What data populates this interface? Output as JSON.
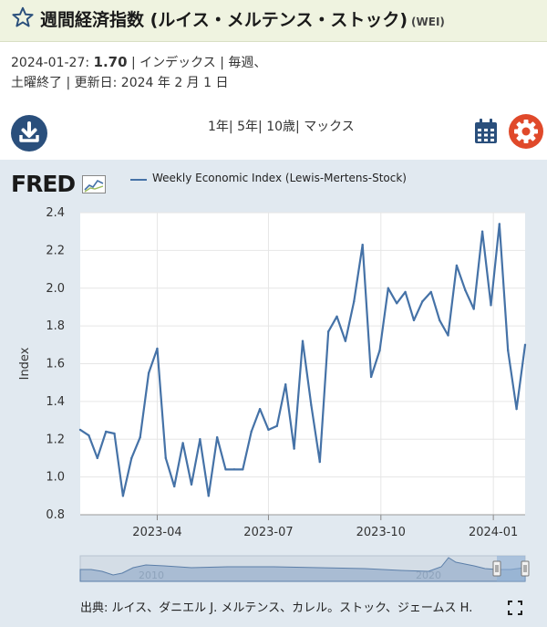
{
  "header": {
    "title": "週間経済指数 (ルイス・メルテンス・ストック)",
    "series_id": "(WEI)"
  },
  "meta": {
    "date": "2024-01-27:",
    "value": "1.70",
    "units": "| インデックス | 毎週、",
    "line2": "土曜終了 | 更新日: 2024 年 2 月 1 日"
  },
  "toolbar": {
    "range_1y": "1年",
    "range_5y": "5年",
    "range_10y": "10歳",
    "range_max": "マックス",
    "sep": "|"
  },
  "logo": {
    "text": "FRED"
  },
  "icons": {
    "favorite": "star-icon",
    "download": "download-icon",
    "calendar": "calendar-icon",
    "settings": "gear-icon",
    "fullscreen": "expand-icon",
    "logo_graph": "graph-icon"
  },
  "colors": {
    "line": "#4572a7",
    "chart_background": "#e1e9f0",
    "header_background": "#eff3e0",
    "download_button": "#2a4f7c",
    "settings_button": "#e0492a"
  },
  "source_text": "出典: ルイス、ダニエル J. メルテンス、カレル。ストック、ジェームス H.",
  "navigator": {
    "labels": [
      "2010",
      "2020"
    ]
  },
  "chart_data": {
    "type": "line",
    "series": [
      {
        "name": "Weekly Economic Index (Lewis-Mertens-Stock)",
        "x": [
          "2023-01-28",
          "2023-02-04",
          "2023-02-11",
          "2023-02-18",
          "2023-02-25",
          "2023-03-04",
          "2023-03-11",
          "2023-03-18",
          "2023-03-25",
          "2023-04-01",
          "2023-04-08",
          "2023-04-15",
          "2023-04-22",
          "2023-04-29",
          "2023-05-06",
          "2023-05-13",
          "2023-05-20",
          "2023-05-27",
          "2023-06-03",
          "2023-06-10",
          "2023-06-17",
          "2023-06-24",
          "2023-07-01",
          "2023-07-08",
          "2023-07-15",
          "2023-07-22",
          "2023-07-29",
          "2023-08-05",
          "2023-08-12",
          "2023-08-19",
          "2023-08-26",
          "2023-09-02",
          "2023-09-09",
          "2023-09-16",
          "2023-09-23",
          "2023-09-30",
          "2023-10-07",
          "2023-10-14",
          "2023-10-21",
          "2023-10-28",
          "2023-11-04",
          "2023-11-11",
          "2023-11-18",
          "2023-11-25",
          "2023-12-02",
          "2023-12-09",
          "2023-12-16",
          "2023-12-23",
          "2023-12-30",
          "2024-01-06",
          "2024-01-13",
          "2024-01-20",
          "2024-01-27"
        ],
        "y": [
          1.25,
          1.22,
          1.1,
          1.24,
          1.23,
          0.9,
          1.1,
          1.21,
          1.55,
          1.68,
          1.1,
          0.95,
          1.18,
          0.96,
          1.2,
          0.9,
          1.21,
          1.04,
          1.04,
          1.04,
          1.24,
          1.36,
          1.25,
          1.27,
          1.49,
          1.15,
          1.72,
          1.38,
          1.08,
          1.77,
          1.85,
          1.72,
          1.93,
          2.23,
          1.53,
          1.67,
          2.0,
          1.92,
          1.98,
          1.83,
          1.93,
          1.98,
          1.83,
          1.75,
          2.12,
          1.99,
          1.89,
          2.3,
          1.91,
          2.34,
          1.67,
          1.36,
          1.7
        ]
      }
    ],
    "title": "",
    "xlabel": "",
    "ylabel": "Index",
    "ylim": [
      0.8,
      2.4
    ],
    "yticks": [
      "0.8",
      "1.0",
      "1.2",
      "1.4",
      "1.6",
      "1.8",
      "2.0",
      "2.2",
      "2.4"
    ],
    "xticks": [
      {
        "date": "2023-04-01",
        "label": "2023-04"
      },
      {
        "date": "2023-07-01",
        "label": "2023-07"
      },
      {
        "date": "2023-10-01",
        "label": "2023-10"
      },
      {
        "date": "2024-01-01",
        "label": "2024-01"
      }
    ],
    "grid": true,
    "legend": "top-left"
  }
}
